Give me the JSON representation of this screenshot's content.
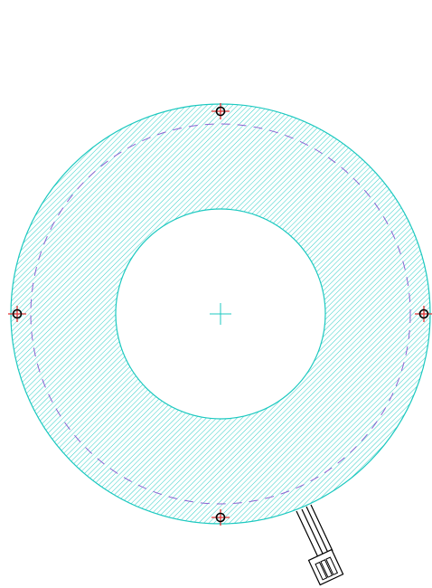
{
  "drawing": {
    "kind": "annular ring light technical drawing",
    "colors": {
      "background": "#ffffff",
      "ring_outline": "#1cc9c0",
      "ring_hatch": "#1cc9c0",
      "bolt_circle": "#8a63d2",
      "mount_hole_ring": "#000000",
      "mount_hole_fill": "#e03030",
      "cable": "#000000"
    },
    "hatch_style": "diagonal-lines",
    "bolt_circle_style": "dashed",
    "mount_hole_count": 4,
    "center_mark": "crosshair",
    "has_cable_connector": true
  }
}
